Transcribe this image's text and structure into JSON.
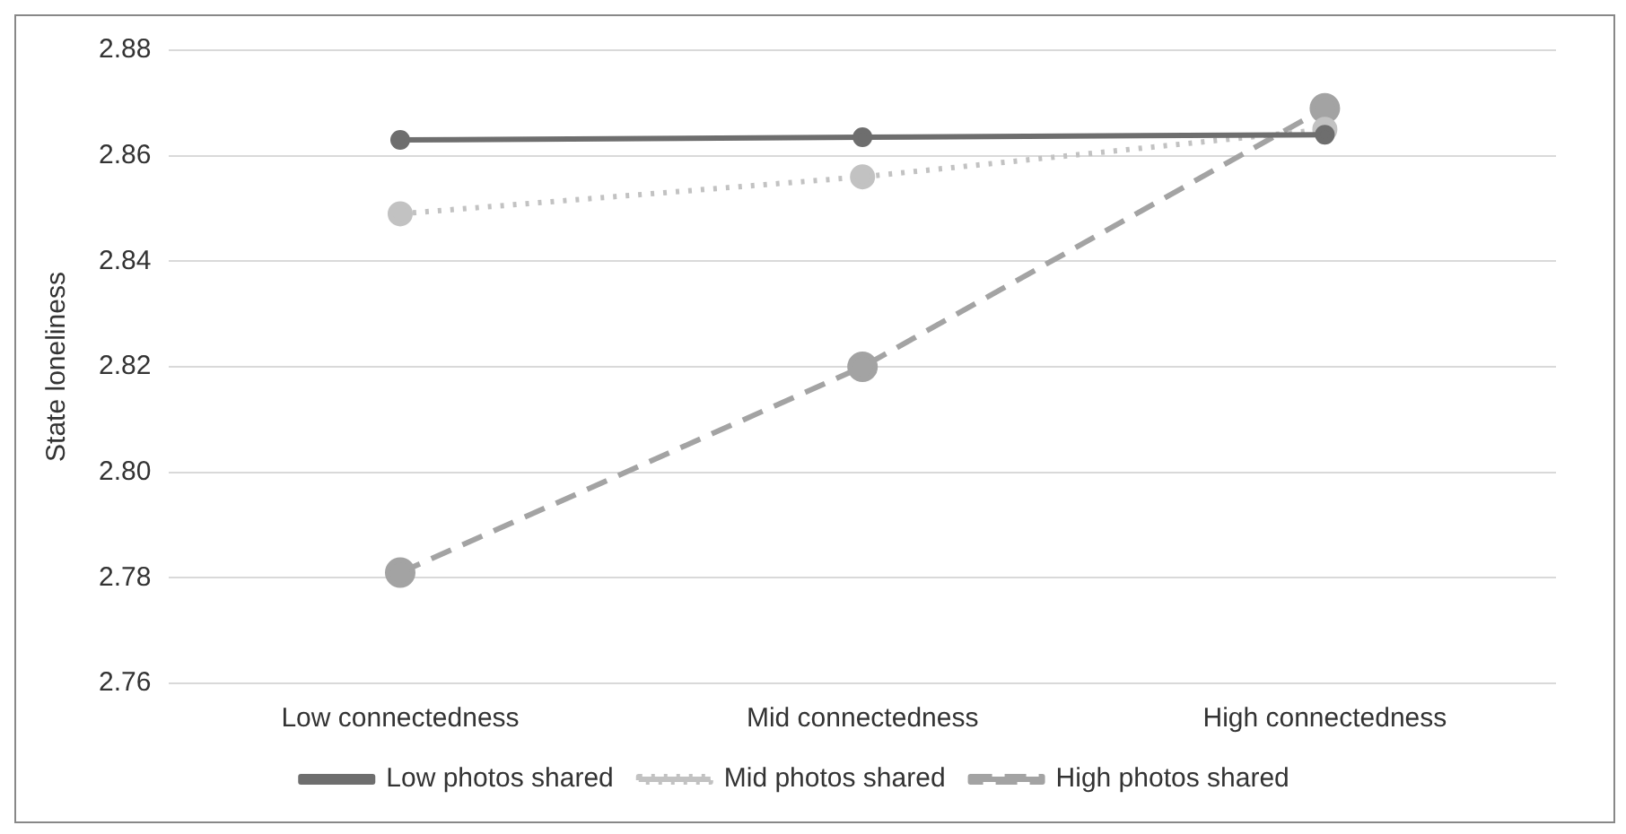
{
  "chart_data": {
    "type": "line",
    "ylabel": "State loneliness",
    "categories": [
      "Low connectedness",
      "Mid connectedness",
      "High connectedness"
    ],
    "series": [
      {
        "name": "Low photos shared",
        "color": "#6e6e6e",
        "values": [
          2.863,
          2.8635,
          2.864
        ],
        "line_style": "solid"
      },
      {
        "name": "Mid photos shared",
        "color": "#c2c2c2",
        "values": [
          2.849,
          2.856,
          2.865
        ],
        "line_style": "dotted"
      },
      {
        "name": "High photos shared",
        "color": "#a3a3a3",
        "values": [
          2.781,
          2.82,
          2.869
        ],
        "line_style": "dashed"
      }
    ],
    "ylim": [
      2.76,
      2.88
    ],
    "yticks": [
      {
        "value": 2.76,
        "label": "2.76"
      },
      {
        "value": 2.78,
        "label": "2.78"
      },
      {
        "value": 2.8,
        "label": "2.80"
      },
      {
        "value": 2.82,
        "label": "2.82"
      },
      {
        "value": 2.84,
        "label": "2.84"
      },
      {
        "value": 2.86,
        "label": "2.86"
      },
      {
        "value": 2.88,
        "label": "2.88"
      }
    ],
    "grid": "y",
    "legend": "bottom",
    "marker": "circle"
  }
}
